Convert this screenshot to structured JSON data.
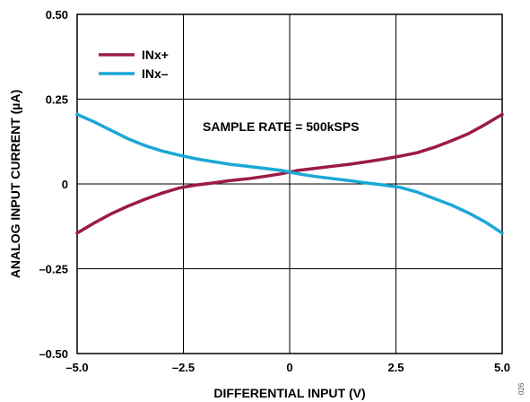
{
  "chart_data": {
    "type": "line",
    "xlabel": "DIFFERENTIAL INPUT (V)",
    "ylabel": "ANALOG INPUT CURRENT (µA)",
    "xlim": [
      -5,
      5
    ],
    "ylim": [
      -0.5,
      0.5
    ],
    "x_ticks": [
      -5,
      -2.5,
      0,
      2.5,
      5
    ],
    "x_tick_labels": [
      "–5.0",
      "–2.5",
      "0",
      "2.5",
      "5.0"
    ],
    "y_ticks": [
      0.5,
      0.25,
      0,
      -0.25,
      -0.5
    ],
    "y_tick_labels": [
      "0.50",
      "0.25",
      "0",
      "–0.25",
      "–0.50"
    ],
    "grid": true,
    "legend_position": "top-left",
    "annotation": "SAMPLE RATE = 500kSPS",
    "figure_id": "026",
    "series": [
      {
        "name": "INx+",
        "color": "#9b1b45",
        "x": [
          -5.0,
          -4.6,
          -4.2,
          -3.8,
          -3.4,
          -3.0,
          -2.6,
          -2.2,
          -1.8,
          -1.4,
          -1.0,
          -0.6,
          -0.2,
          0.0,
          0.2,
          0.6,
          1.0,
          1.4,
          1.8,
          2.2,
          2.6,
          3.0,
          3.4,
          3.8,
          4.2,
          4.6,
          5.0
        ],
        "y": [
          -0.145,
          -0.115,
          -0.088,
          -0.065,
          -0.045,
          -0.027,
          -0.012,
          -0.003,
          0.003,
          0.01,
          0.015,
          0.022,
          0.03,
          0.035,
          0.04,
          0.046,
          0.052,
          0.058,
          0.065,
          0.073,
          0.082,
          0.092,
          0.108,
          0.127,
          0.148,
          0.175,
          0.205
        ]
      },
      {
        "name": "INx–",
        "color": "#1ba7d6",
        "x": [
          -5.0,
          -4.6,
          -4.2,
          -3.8,
          -3.4,
          -3.0,
          -2.6,
          -2.2,
          -1.8,
          -1.4,
          -1.0,
          -0.6,
          -0.2,
          0.0,
          0.2,
          0.6,
          1.0,
          1.4,
          1.8,
          2.2,
          2.6,
          3.0,
          3.4,
          3.8,
          4.2,
          4.6,
          5.0
        ],
        "y": [
          0.205,
          0.183,
          0.158,
          0.133,
          0.113,
          0.097,
          0.085,
          0.074,
          0.066,
          0.058,
          0.052,
          0.046,
          0.04,
          0.035,
          0.03,
          0.022,
          0.016,
          0.01,
          0.003,
          -0.003,
          -0.01,
          -0.024,
          -0.043,
          -0.062,
          -0.085,
          -0.112,
          -0.145
        ]
      }
    ]
  }
}
